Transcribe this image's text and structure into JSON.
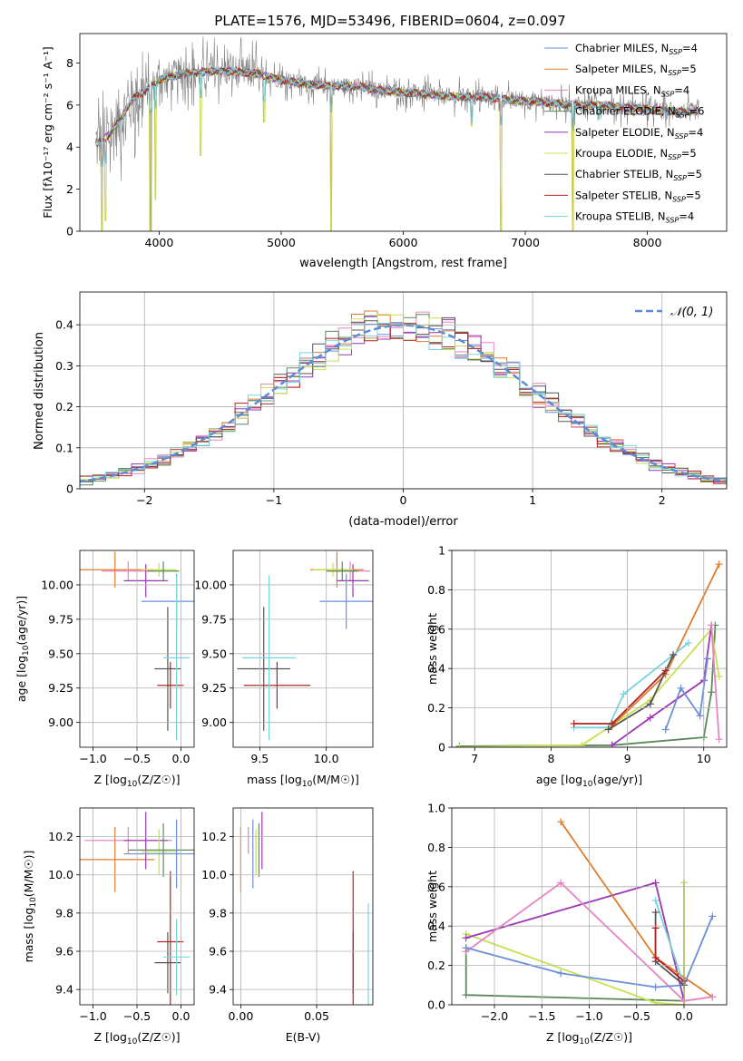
{
  "title": "PLATE=1576, MJD=53496, FIBERID=0604, z=0.097",
  "colors": {
    "Chabrier MILES": "#6a8fd8",
    "Salpeter MILES": "#e07b2b",
    "Kroupa MILES": "#e883c3",
    "Chabrier ELODIE": "#5a8a5a",
    "Salpeter ELODIE": "#9b36b4",
    "Kroupa ELODIE": "#c8e050",
    "Chabrier STELIB": "#555555",
    "Salpeter STELIB": "#b22222",
    "Kroupa STELIB": "#78d4dc"
  },
  "chart_data": [
    {
      "type": "line",
      "xlabel": "wavelength [Angstrom, rest frame]",
      "ylabel": "Flux [fλ10⁻¹⁷ erg cm⁻² s⁻¹ A⁻¹]",
      "xlim": [
        3350,
        8650
      ],
      "ylim": [
        0,
        9.4
      ],
      "xticks": [
        4000,
        5000,
        6000,
        7000,
        8000
      ],
      "yticks": [
        0,
        2,
        4,
        6,
        8
      ],
      "grid": false,
      "legend_position": "top-right",
      "legend": [
        {
          "name": "Chabrier MILES",
          "sub": "SSP",
          "n": "=4"
        },
        {
          "name": "Salpeter MILES",
          "sub": "SSP",
          "n": "=5"
        },
        {
          "name": "Kroupa MILES",
          "sub": "SSP",
          "n": "=4"
        },
        {
          "name": "Chabrier ELODIE",
          "sub": "SSP",
          "n": "=6"
        },
        {
          "name": "Salpeter ELODIE",
          "sub": "SSP",
          "n": "=4"
        },
        {
          "name": "Kroupa ELODIE",
          "sub": "SSP",
          "n": "=5"
        },
        {
          "name": "Chabrier STELIB",
          "sub": "SSP",
          "n": "=5"
        },
        {
          "name": "Salpeter STELIB",
          "sub": "SSP",
          "n": "=5"
        },
        {
          "name": "Kroupa STELIB",
          "sub": "SSP",
          "n": "=4"
        }
      ],
      "data_series": {
        "name": "data",
        "color": "#808080"
      },
      "continuum_knots": [
        [
          3500,
          4.2
        ],
        [
          3600,
          4.6
        ],
        [
          3700,
          5.5
        ],
        [
          3800,
          6.4
        ],
        [
          3900,
          6.7
        ],
        [
          4000,
          7.2
        ],
        [
          4200,
          7.5
        ],
        [
          4400,
          7.6
        ],
        [
          4600,
          7.6
        ],
        [
          4800,
          7.5
        ],
        [
          5000,
          7.2
        ],
        [
          5200,
          7.0
        ],
        [
          5400,
          6.9
        ],
        [
          5600,
          6.9
        ],
        [
          5800,
          6.7
        ],
        [
          6000,
          6.6
        ],
        [
          6200,
          6.5
        ],
        [
          6400,
          6.4
        ],
        [
          6600,
          6.4
        ],
        [
          6800,
          6.3
        ],
        [
          7000,
          6.2
        ],
        [
          7200,
          6.1
        ],
        [
          7400,
          6.0
        ],
        [
          7600,
          6.0
        ],
        [
          7800,
          5.9
        ],
        [
          8000,
          5.8
        ],
        [
          8200,
          5.7
        ],
        [
          8400,
          5.7
        ]
      ],
      "spikes_down": [
        [
          3530,
          0
        ],
        [
          3560,
          0.5
        ],
        [
          3930,
          0
        ],
        [
          3970,
          1.5
        ],
        [
          4340,
          3.6
        ],
        [
          4860,
          5.2
        ],
        [
          5410,
          0
        ],
        [
          6560,
          5.0
        ],
        [
          6800,
          0
        ],
        [
          7390,
          0
        ],
        [
          7600,
          5.3
        ]
      ]
    },
    {
      "type": "line",
      "xlabel": "(data-model)/error",
      "ylabel": "Normed distribution",
      "xlim": [
        -2.5,
        2.5
      ],
      "ylim": [
        0,
        0.48
      ],
      "xticks": [
        -2,
        -1,
        0,
        1,
        2
      ],
      "yticks": [
        0.0,
        0.1,
        0.2,
        0.3,
        0.4
      ],
      "grid": true,
      "legend_position": "top-right",
      "legend": [
        {
          "name": "𝒩(0, 1)"
        }
      ],
      "gaussian": {
        "mean": 0,
        "sigma": 1,
        "color": "#5b8ad6"
      },
      "hist_bin_width": 0.1
    },
    {
      "type": "scatter",
      "xlabel": "Z [log10(Z/Z☉)]",
      "ylabel": "age  [log10(age/yr)]",
      "xlim": [
        -1.15,
        0.15
      ],
      "ylim": [
        8.82,
        10.25
      ],
      "xticks": [
        -1.0,
        -0.5,
        0.0
      ],
      "xticklabels": [
        "−1.0",
        "−0.5",
        "0.0"
      ],
      "yticks": [
        9.0,
        9.25,
        9.5,
        9.75,
        10.0
      ],
      "yticklabels": [
        "9.00",
        "9.25",
        "9.50",
        "9.75",
        "10.00"
      ],
      "grid": true,
      "points": [
        {
          "series": "Salpeter MILES",
          "x": -0.75,
          "xerr": 0.45,
          "y": 10.11,
          "yerr": 0.13
        },
        {
          "series": "Kroupa MILES",
          "x": -0.6,
          "xerr": 0.3,
          "y": 10.1,
          "yerr": 0.07
        },
        {
          "series": "Salpeter ELODIE",
          "x": -0.4,
          "xerr": 0.25,
          "y": 10.03,
          "yerr": 0.12
        },
        {
          "series": "Kroupa ELODIE",
          "x": -0.25,
          "xerr": 0.2,
          "y": 10.11,
          "yerr": 0.05
        },
        {
          "series": "Chabrier ELODIE",
          "x": -0.2,
          "xerr": 0.18,
          "y": 10.1,
          "yerr": 0.07
        },
        {
          "series": "Chabrier MILES",
          "x": -0.05,
          "xerr": 0.4,
          "y": 9.88,
          "yerr": 0.2
        },
        {
          "series": "Chabrier STELIB",
          "x": -0.15,
          "xerr": 0.15,
          "y": 9.39,
          "yerr": 0.45
        },
        {
          "series": "Salpeter STELIB",
          "x": -0.12,
          "xerr": 0.15,
          "y": 9.27,
          "yerr": 0.17
        },
        {
          "series": "Kroupa STELIB",
          "x": -0.05,
          "xerr": 0.15,
          "y": 9.47,
          "yerr": 0.6
        }
      ]
    },
    {
      "type": "scatter",
      "xlabel": "mass [log10(M/M☉)]",
      "ylabel": "",
      "xlim": [
        9.3,
        10.35
      ],
      "ylim": [
        8.82,
        10.25
      ],
      "xticks": [
        9.5,
        10.0
      ],
      "xticklabels": [
        "9.5",
        "10.0"
      ],
      "yticks": [
        9.0,
        9.25,
        9.5,
        9.75,
        10.0
      ],
      "yticklabels": [
        "9.00",
        "9.25",
        "9.50",
        "9.75",
        "10.00"
      ],
      "grid": true,
      "points": [
        {
          "series": "Salpeter MILES",
          "x": 10.08,
          "xerr": 0.2,
          "y": 10.11,
          "yerr": 0.13
        },
        {
          "series": "Kroupa MILES",
          "x": 10.18,
          "xerr": 0.15,
          "y": 10.1,
          "yerr": 0.07
        },
        {
          "series": "Salpeter ELODIE",
          "x": 10.2,
          "xerr": 0.12,
          "y": 10.03,
          "yerr": 0.12
        },
        {
          "series": "Kroupa ELODIE",
          "x": 10.05,
          "xerr": 0.15,
          "y": 10.11,
          "yerr": 0.05
        },
        {
          "series": "Chabrier ELODIE",
          "x": 10.12,
          "xerr": 0.12,
          "y": 10.1,
          "yerr": 0.07
        },
        {
          "series": "Chabrier MILES",
          "x": 10.15,
          "xerr": 0.2,
          "y": 9.88,
          "yerr": 0.2
        },
        {
          "series": "Chabrier STELIB",
          "x": 9.53,
          "xerr": 0.2,
          "y": 9.39,
          "yerr": 0.45
        },
        {
          "series": "Salpeter STELIB",
          "x": 9.63,
          "xerr": 0.25,
          "y": 9.27,
          "yerr": 0.17
        },
        {
          "series": "Kroupa STELIB",
          "x": 9.57,
          "xerr": 0.2,
          "y": 9.47,
          "yerr": 0.6
        }
      ]
    },
    {
      "type": "line",
      "xlabel": "age  [log10(age/yr)]",
      "ylabel": "mass weight",
      "xlim": [
        6.7,
        10.3
      ],
      "ylim": [
        0,
        1.0
      ],
      "xticks": [
        7,
        8,
        9,
        10
      ],
      "yticks": [
        0.0,
        0.2,
        0.4,
        0.6,
        0.8,
        1.0
      ],
      "grid": true,
      "series": [
        {
          "name": "Chabrier ELODIE",
          "points": [
            [
              6.8,
              0.005
            ],
            [
              8.8,
              0.01
            ],
            [
              10.0,
              0.05
            ],
            [
              10.1,
              0.28
            ],
            [
              10.15,
              0.62
            ]
          ]
        },
        {
          "name": "Kroupa ELODIE",
          "points": [
            [
              6.8,
              0.0
            ],
            [
              8.4,
              0.01
            ],
            [
              9.3,
              0.24
            ],
            [
              10.1,
              0.6
            ],
            [
              10.2,
              0.36
            ]
          ]
        },
        {
          "name": "Salpeter ELODIE",
          "points": [
            [
              8.8,
              0.01
            ],
            [
              9.3,
              0.15
            ],
            [
              10.0,
              0.34
            ],
            [
              10.1,
              0.62
            ]
          ]
        },
        {
          "name": "Salpeter MILES",
          "points": [
            [
              8.8,
              0.11
            ],
            [
              9.5,
              0.37
            ],
            [
              10.2,
              0.93
            ]
          ]
        },
        {
          "name": "Kroupa STELIB",
          "points": [
            [
              8.3,
              0.1
            ],
            [
              8.75,
              0.1
            ],
            [
              8.95,
              0.27
            ],
            [
              9.8,
              0.53
            ]
          ]
        },
        {
          "name": "Chabrier STELIB",
          "points": [
            [
              8.75,
              0.09
            ],
            [
              9.3,
              0.22
            ],
            [
              9.6,
              0.47
            ]
          ]
        },
        {
          "name": "Salpeter STELIB",
          "points": [
            [
              8.3,
              0.12
            ],
            [
              8.8,
              0.12
            ],
            [
              9.5,
              0.39
            ]
          ]
        },
        {
          "name": "Chabrier MILES",
          "points": [
            [
              9.5,
              0.09
            ],
            [
              9.7,
              0.3
            ],
            [
              9.95,
              0.16
            ],
            [
              10.05,
              0.45
            ]
          ]
        },
        {
          "name": "Kroupa MILES",
          "points": [
            [
              10.1,
              0.62
            ],
            [
              10.2,
              0.04
            ]
          ]
        }
      ]
    },
    {
      "type": "scatter",
      "xlabel": "Z [log10(Z/Z☉)]",
      "ylabel": "mass [log10(M/M☉)]",
      "xlim": [
        -1.15,
        0.15
      ],
      "ylim": [
        9.32,
        10.35
      ],
      "xticks": [
        -1.0,
        -0.5,
        0.0
      ],
      "xticklabels": [
        "−1.0",
        "−0.5",
        "0.0"
      ],
      "yticks": [
        9.4,
        9.6,
        9.8,
        10.0,
        10.2
      ],
      "yticklabels": [
        "9.4",
        "9.6",
        "9.8",
        "10.0",
        "10.2"
      ],
      "grid": true,
      "points": [
        {
          "series": "Salpeter MILES",
          "x": -0.75,
          "xerr": 0.45,
          "y": 10.08,
          "yerr": 0.17
        },
        {
          "series": "Kroupa MILES",
          "x": -0.6,
          "xerr": 0.5,
          "y": 10.18,
          "yerr": 0.07
        },
        {
          "series": "Salpeter ELODIE",
          "x": -0.4,
          "xerr": 0.25,
          "y": 10.18,
          "yerr": 0.15
        },
        {
          "series": "Kroupa ELODIE",
          "x": -0.25,
          "xerr": 0.2,
          "y": 10.12,
          "yerr": 0.12
        },
        {
          "series": "Chabrier ELODIE",
          "x": -0.2,
          "xerr": 0.4,
          "y": 10.13,
          "yerr": 0.14
        },
        {
          "series": "Chabrier MILES",
          "x": -0.05,
          "xerr": 0.6,
          "y": 10.11,
          "yerr": 0.18
        },
        {
          "series": "Chabrier STELIB",
          "x": -0.15,
          "xerr": 0.15,
          "y": 9.54,
          "yerr": 0.16
        },
        {
          "series": "Salpeter STELIB",
          "x": -0.12,
          "xerr": 0.15,
          "y": 9.65,
          "yerr": 0.37
        },
        {
          "series": "Kroupa STELIB",
          "x": -0.05,
          "xerr": 0.15,
          "y": 9.57,
          "yerr": 0.2
        }
      ]
    },
    {
      "type": "scatter",
      "xlabel": "E(B-V)",
      "ylabel": "",
      "xlim": [
        -0.005,
        0.087
      ],
      "ylim": [
        9.32,
        10.35
      ],
      "xticks": [
        0.0,
        0.05
      ],
      "xticklabels": [
        "0.00",
        "0.05"
      ],
      "yticks": [
        9.4,
        9.6,
        9.8,
        10.0,
        10.2
      ],
      "yticklabels": [
        "9.4",
        "9.6",
        "9.8",
        "10.0",
        "10.2"
      ],
      "grid": true,
      "points": [
        {
          "series": "Salpeter MILES",
          "x": 0.0,
          "y": 10.08,
          "yerr": 0.17
        },
        {
          "series": "Kroupa MILES",
          "x": 0.005,
          "y": 10.18,
          "yerr": 0.07
        },
        {
          "series": "Chabrier MILES",
          "x": 0.008,
          "y": 10.11,
          "yerr": 0.18
        },
        {
          "series": "Kroupa ELODIE",
          "x": 0.01,
          "y": 10.12,
          "yerr": 0.12
        },
        {
          "series": "Chabrier ELODIE",
          "x": 0.012,
          "y": 10.13,
          "yerr": 0.14
        },
        {
          "series": "Salpeter ELODIE",
          "x": 0.014,
          "y": 10.18,
          "yerr": 0.15
        },
        {
          "series": "Chabrier STELIB",
          "x": 0.074,
          "y": 9.54,
          "yerr": 0.16
        },
        {
          "series": "Salpeter STELIB",
          "x": 0.074,
          "y": 9.65,
          "yerr": 0.37
        },
        {
          "series": "Kroupa STELIB",
          "x": 0.084,
          "y": 9.57,
          "yerr": 0.28
        }
      ]
    },
    {
      "type": "line",
      "xlabel": "Z [log10(Z/Z☉)]",
      "ylabel": "mass weight",
      "xlim": [
        -2.45,
        0.45
      ],
      "ylim": [
        0,
        1.0
      ],
      "xticks": [
        -2.0,
        -1.5,
        -1.0,
        -0.5,
        0.0
      ],
      "xticklabels": [
        "−2.0",
        "−1.5",
        "−1.0",
        "−0.5",
        "0.0"
      ],
      "yticks": [
        0.0,
        0.2,
        0.4,
        0.6,
        0.8,
        1.0
      ],
      "yticklabels": [
        "0.0",
        "0.2",
        "0.4",
        "0.6",
        "0.8",
        "1.0"
      ],
      "grid": true,
      "series": [
        {
          "name": "Chabrier ELODIE",
          "points": [
            [
              -2.3,
              0.29
            ],
            [
              -2.3,
              0.05
            ],
            [
              0.0,
              0.02
            ],
            [
              0.0,
              0.62
            ]
          ]
        },
        {
          "name": "Kroupa ELODIE",
          "points": [
            [
              -2.3,
              0.36
            ],
            [
              -0.3,
              0.01
            ],
            [
              0.0,
              0.0
            ],
            [
              0.0,
              0.62
            ]
          ]
        },
        {
          "name": "Salpeter ELODIE",
          "points": [
            [
              -2.3,
              0.34
            ],
            [
              -0.3,
              0.62
            ],
            [
              0.0,
              0.02
            ]
          ]
        },
        {
          "name": "Salpeter MILES",
          "points": [
            [
              -1.3,
              0.93
            ],
            [
              -0.3,
              0.24
            ],
            [
              0.3,
              0.04
            ]
          ]
        },
        {
          "name": "Kroupa MILES",
          "points": [
            [
              -2.3,
              0.27
            ],
            [
              -1.3,
              0.62
            ],
            [
              0.0,
              0.02
            ],
            [
              0.3,
              0.04
            ]
          ]
        },
        {
          "name": "Chabrier MILES",
          "points": [
            [
              -2.3,
              0.29
            ],
            [
              -1.3,
              0.16
            ],
            [
              -0.3,
              0.09
            ],
            [
              0.0,
              0.1
            ],
            [
              0.3,
              0.45
            ]
          ]
        },
        {
          "name": "Kroupa STELIB",
          "points": [
            [
              -0.3,
              0.53
            ],
            [
              0.0,
              0.1
            ]
          ]
        },
        {
          "name": "Chabrier STELIB",
          "points": [
            [
              -0.3,
              0.47
            ],
            [
              -0.3,
              0.22
            ],
            [
              0.0,
              0.1
            ]
          ]
        },
        {
          "name": "Salpeter STELIB",
          "points": [
            [
              -0.3,
              0.39
            ],
            [
              -0.3,
              0.24
            ],
            [
              0.0,
              0.12
            ]
          ]
        }
      ]
    }
  ]
}
